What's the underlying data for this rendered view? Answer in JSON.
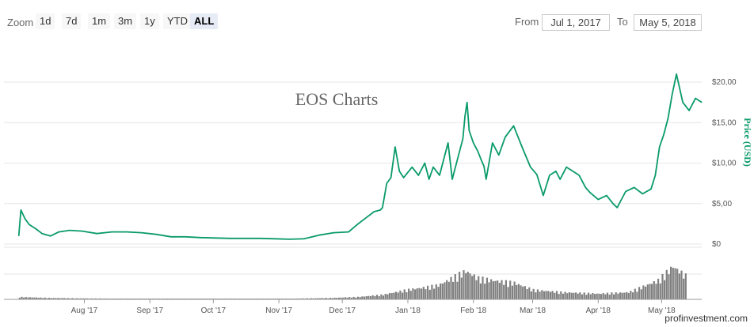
{
  "toolbar": {
    "zoom_label": "Zoom",
    "zoom_buttons": [
      "1d",
      "7d",
      "1m",
      "3m",
      "1y",
      "YTD",
      "ALL"
    ],
    "active_zoom": "ALL",
    "from_label": "From",
    "from_value": "Jul 1, 2017",
    "to_label": "To",
    "to_value": "May 5, 2018"
  },
  "watermark": "profinvestment.com",
  "colors": {
    "price_line": "#0a9a6a",
    "volume": "#808080",
    "grid": "#e6e6e6"
  },
  "chart_data": {
    "type": "line",
    "title": "EOS Charts",
    "ylabel": "Price (USD)",
    "ylim": [
      0,
      22
    ],
    "yticks": [
      0,
      5,
      10,
      15,
      20
    ],
    "ytick_labels": [
      "$0",
      "$5,00",
      "$10,00",
      "$15,00",
      "$20,00"
    ],
    "x_tick_dates": [
      "2017-08-01",
      "2017-09-01",
      "2017-10-01",
      "2017-11-01",
      "2017-12-01",
      "2018-01-01",
      "2018-02-01",
      "2018-03-01",
      "2018-04-01",
      "2018-05-01"
    ],
    "x_tick_labels": [
      "Aug '17",
      "Sep '17",
      "Oct '17",
      "Nov '17",
      "Dec '17",
      "Jan '18",
      "Feb '18",
      "Mar '18",
      "Apr '18",
      "May '18"
    ],
    "xlim": [
      "2017-07-01",
      "2018-05-05"
    ],
    "series": [
      {
        "name": "Price",
        "points": [
          [
            "2017-07-01",
            1.0
          ],
          [
            "2017-07-02",
            4.2
          ],
          [
            "2017-07-04",
            3.1
          ],
          [
            "2017-07-06",
            2.4
          ],
          [
            "2017-07-09",
            1.9
          ],
          [
            "2017-07-12",
            1.3
          ],
          [
            "2017-07-16",
            1.0
          ],
          [
            "2017-07-20",
            1.5
          ],
          [
            "2017-07-25",
            1.7
          ],
          [
            "2017-07-31",
            1.6
          ],
          [
            "2017-08-07",
            1.3
          ],
          [
            "2017-08-14",
            1.5
          ],
          [
            "2017-08-21",
            1.5
          ],
          [
            "2017-08-28",
            1.4
          ],
          [
            "2017-09-04",
            1.2
          ],
          [
            "2017-09-11",
            0.9
          ],
          [
            "2017-09-18",
            0.9
          ],
          [
            "2017-09-25",
            0.8
          ],
          [
            "2017-10-02",
            0.75
          ],
          [
            "2017-10-09",
            0.7
          ],
          [
            "2017-10-16",
            0.7
          ],
          [
            "2017-10-23",
            0.7
          ],
          [
            "2017-10-30",
            0.65
          ],
          [
            "2017-11-06",
            0.6
          ],
          [
            "2017-11-13",
            0.65
          ],
          [
            "2017-11-20",
            1.1
          ],
          [
            "2017-11-27",
            1.4
          ],
          [
            "2017-12-04",
            1.5
          ],
          [
            "2017-12-08",
            2.4
          ],
          [
            "2017-12-12",
            3.2
          ],
          [
            "2017-12-16",
            4.0
          ],
          [
            "2017-12-19",
            4.2
          ],
          [
            "2017-12-20",
            4.5
          ],
          [
            "2017-12-22",
            7.5
          ],
          [
            "2017-12-24",
            8.2
          ],
          [
            "2017-12-26",
            12.0
          ],
          [
            "2017-12-28",
            9.0
          ],
          [
            "2017-12-30",
            8.2
          ],
          [
            "2018-01-03",
            9.5
          ],
          [
            "2018-01-06",
            8.5
          ],
          [
            "2018-01-09",
            10.0
          ],
          [
            "2018-01-11",
            8.0
          ],
          [
            "2018-01-13",
            9.5
          ],
          [
            "2018-01-16",
            8.5
          ],
          [
            "2018-01-20",
            12.5
          ],
          [
            "2018-01-22",
            8.0
          ],
          [
            "2018-01-25",
            11.0
          ],
          [
            "2018-01-27",
            13.0
          ],
          [
            "2018-01-28",
            15.8
          ],
          [
            "2018-01-29",
            17.5
          ],
          [
            "2018-01-30",
            14.0
          ],
          [
            "2018-02-01",
            12.5
          ],
          [
            "2018-02-03",
            11.5
          ],
          [
            "2018-02-05",
            10.2
          ],
          [
            "2018-02-06",
            9.6
          ],
          [
            "2018-02-07",
            8.0
          ],
          [
            "2018-02-10",
            12.5
          ],
          [
            "2018-02-13",
            11.0
          ],
          [
            "2018-02-16",
            13.2
          ],
          [
            "2018-02-20",
            14.6
          ],
          [
            "2018-02-24",
            12.0
          ],
          [
            "2018-02-28",
            9.5
          ],
          [
            "2018-03-03",
            8.6
          ],
          [
            "2018-03-06",
            6.0
          ],
          [
            "2018-03-09",
            8.5
          ],
          [
            "2018-03-12",
            9.0
          ],
          [
            "2018-03-14",
            8.0
          ],
          [
            "2018-03-17",
            9.5
          ],
          [
            "2018-03-20",
            9.0
          ],
          [
            "2018-03-23",
            8.5
          ],
          [
            "2018-03-26",
            7.0
          ],
          [
            "2018-03-28",
            6.4
          ],
          [
            "2018-04-01",
            5.5
          ],
          [
            "2018-04-05",
            6.0
          ],
          [
            "2018-04-08",
            5.0
          ],
          [
            "2018-04-10",
            4.5
          ],
          [
            "2018-04-12",
            5.5
          ],
          [
            "2018-04-14",
            6.5
          ],
          [
            "2018-04-18",
            7.0
          ],
          [
            "2018-04-22",
            6.2
          ],
          [
            "2018-04-26",
            6.8
          ],
          [
            "2018-04-28",
            8.5
          ],
          [
            "2018-04-30",
            12.0
          ],
          [
            "2018-05-02",
            13.5
          ],
          [
            "2018-05-04",
            15.5
          ],
          [
            "2018-05-06",
            18.5
          ],
          [
            "2018-05-08",
            21.0
          ],
          [
            "2018-05-11",
            17.5
          ],
          [
            "2018-05-14",
            16.5
          ],
          [
            "2018-05-17",
            18.0
          ],
          [
            "2018-05-20",
            17.5
          ]
        ]
      },
      {
        "name": "Volume",
        "type": "bar",
        "relative_levels": [
          [
            "2017-07-01",
            0.05
          ],
          [
            "2017-07-15",
            0.03
          ],
          [
            "2017-08-01",
            0.02
          ],
          [
            "2017-09-01",
            0.01
          ],
          [
            "2017-10-01",
            0.01
          ],
          [
            "2017-11-01",
            0.01
          ],
          [
            "2017-11-25",
            0.03
          ],
          [
            "2017-12-08",
            0.05
          ],
          [
            "2017-12-20",
            0.1
          ],
          [
            "2017-12-31",
            0.2
          ],
          [
            "2018-01-08",
            0.25
          ],
          [
            "2018-01-15",
            0.3
          ],
          [
            "2018-01-28",
            0.6
          ],
          [
            "2018-02-03",
            0.45
          ],
          [
            "2018-02-10",
            0.4
          ],
          [
            "2018-02-20",
            0.35
          ],
          [
            "2018-03-01",
            0.2
          ],
          [
            "2018-03-15",
            0.15
          ],
          [
            "2018-04-01",
            0.12
          ],
          [
            "2018-04-15",
            0.15
          ],
          [
            "2018-04-29",
            0.4
          ],
          [
            "2018-05-06",
            0.7
          ],
          [
            "2018-05-12",
            0.5
          ]
        ]
      }
    ]
  }
}
